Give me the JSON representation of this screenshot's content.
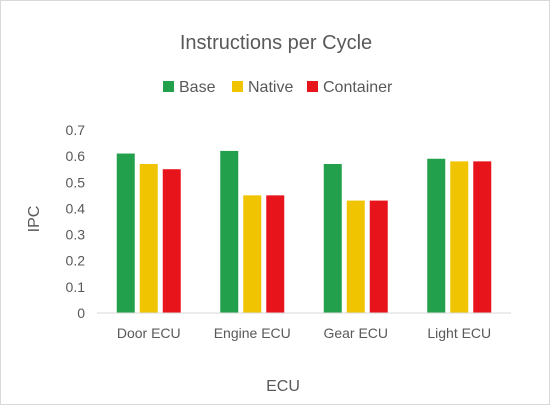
{
  "chart_data": {
    "type": "bar",
    "title": "Instructions per Cycle",
    "xlabel": "ECU",
    "ylabel": "IPC",
    "categories": [
      "Door ECU",
      "Engine ECU",
      "Gear ECU",
      "Light ECU"
    ],
    "series": [
      {
        "name": "Base",
        "color": "#22a04b",
        "values": [
          0.61,
          0.62,
          0.57,
          0.59
        ]
      },
      {
        "name": "Native",
        "color": "#f0c400",
        "values": [
          0.57,
          0.45,
          0.43,
          0.58
        ]
      },
      {
        "name": "Container",
        "color": "#e8141b",
        "values": [
          0.55,
          0.45,
          0.43,
          0.58
        ]
      }
    ],
    "ylim": [
      0,
      0.7
    ],
    "yticks": [
      "0",
      "0.1",
      "0.2",
      "0.3",
      "0.4",
      "0.5",
      "0.6",
      "0.7"
    ],
    "grid": false,
    "legend_position": "top"
  }
}
